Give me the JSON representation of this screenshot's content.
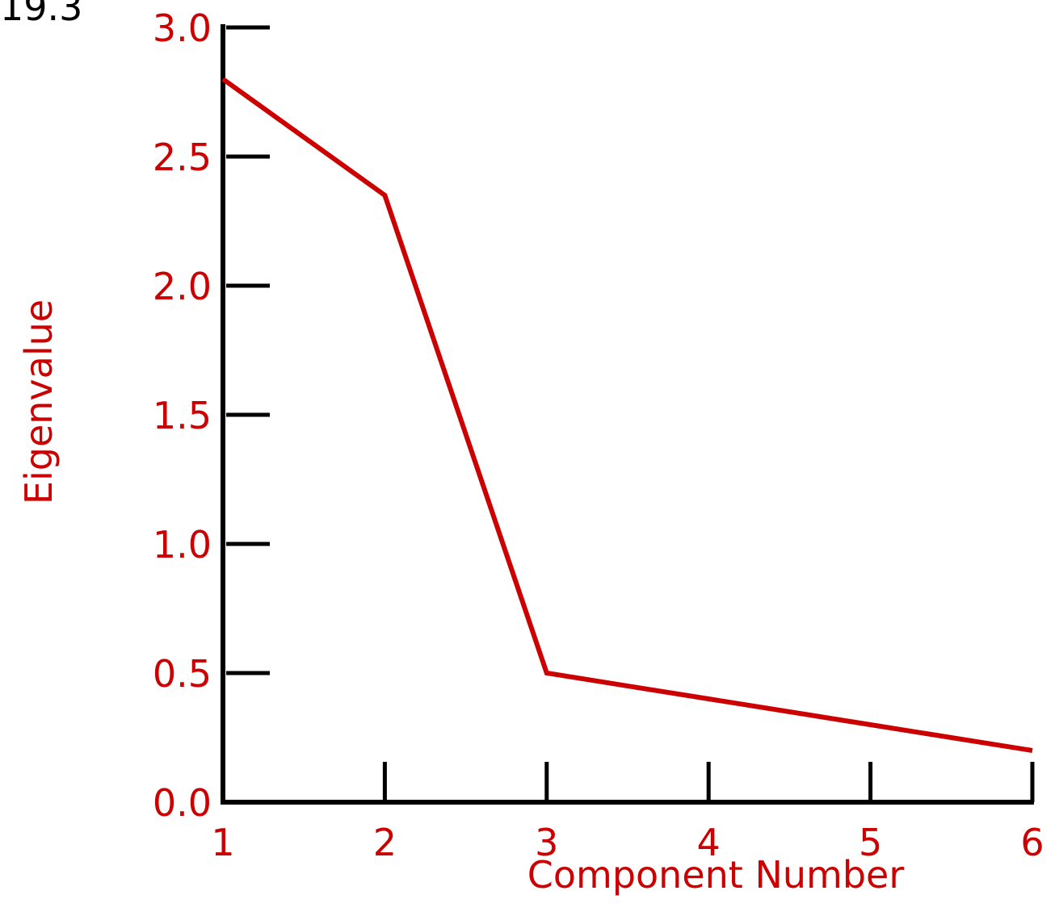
{
  "figure_label": "19.3",
  "colors": {
    "series": "#cc0000",
    "text": "#cc0000",
    "axis": "#000000"
  },
  "chart_data": {
    "type": "line",
    "title": "",
    "xlabel": "Component Number",
    "ylabel": "Eigenvalue",
    "x": [
      1,
      2,
      3,
      4,
      5,
      6
    ],
    "series": [
      {
        "values": [
          2.8,
          2.35,
          0.5,
          0.4,
          0.3,
          0.2
        ]
      }
    ],
    "xlim": [
      1,
      6
    ],
    "ylim": [
      0,
      3
    ],
    "x_ticks": [
      "1",
      "2",
      "3",
      "4",
      "5",
      "6"
    ],
    "y_ticks": [
      "0.0",
      "0.5",
      "1.0",
      "1.5",
      "2.0",
      "2.5",
      "3.0"
    ],
    "grid": false,
    "legend": "none"
  }
}
